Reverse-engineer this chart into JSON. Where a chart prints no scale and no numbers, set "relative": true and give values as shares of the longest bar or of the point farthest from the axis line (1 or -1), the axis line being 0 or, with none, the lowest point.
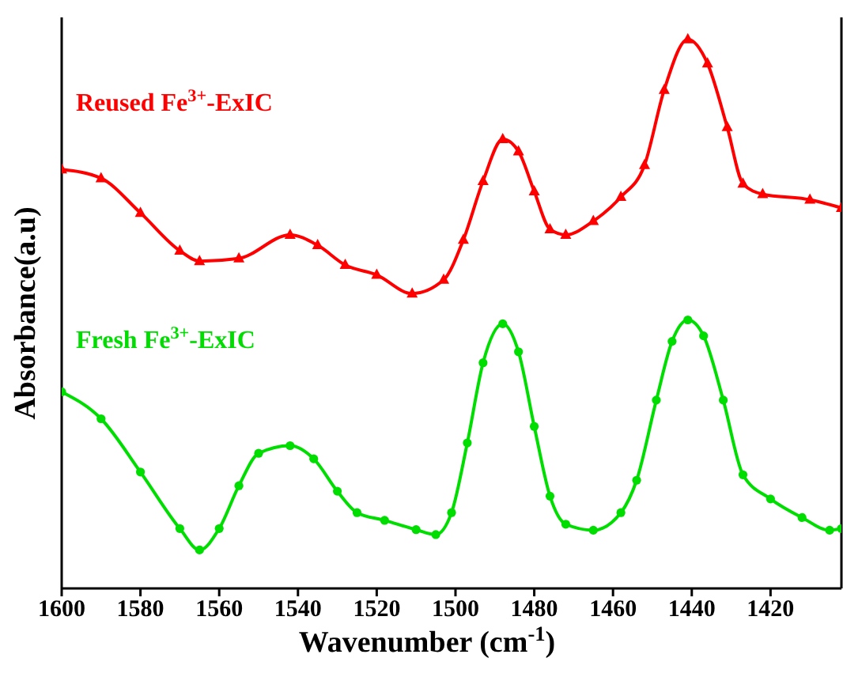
{
  "chart_data": {
    "type": "line",
    "relative": true,
    "xlabel": "Wavenumber (cm$^{-1}$)",
    "ylabel": "Absorbance(a.u)",
    "xlim": [
      1600,
      1402
    ],
    "xticks": [
      1600,
      1580,
      1560,
      1540,
      1520,
      1500,
      1480,
      1460,
      1440,
      1420
    ],
    "grid": false,
    "legend": false,
    "line_style": "solid",
    "series": [
      {
        "name": "Reused Fe$^{3+}$-ExIC",
        "color": "#ff0000",
        "marker": "triangle",
        "x": [
          1600,
          1590,
          1580,
          1570,
          1565,
          1555,
          1542,
          1535,
          1528,
          1520,
          1511,
          1503,
          1498,
          1493,
          1488,
          1484,
          1480,
          1476,
          1472,
          1465,
          1458,
          1452,
          1447,
          1441,
          1436,
          1431,
          1427,
          1422,
          1410,
          1402
        ],
        "values": [
          0.763,
          0.747,
          0.684,
          0.615,
          0.596,
          0.601,
          0.644,
          0.625,
          0.589,
          0.571,
          0.537,
          0.562,
          0.635,
          0.742,
          0.818,
          0.796,
          0.723,
          0.654,
          0.644,
          0.669,
          0.713,
          0.771,
          0.908,
          1.0,
          0.956,
          0.84,
          0.737,
          0.718,
          0.708,
          0.693
        ]
      },
      {
        "name": "Fresh Fe$^{3+}$-ExIC",
        "color": "#00dd00",
        "marker": "circle",
        "x": [
          1600,
          1590,
          1580,
          1570,
          1565,
          1560,
          1555,
          1550,
          1542,
          1536,
          1530,
          1525,
          1518,
          1510,
          1505,
          1501,
          1497,
          1493,
          1488,
          1484,
          1480,
          1476,
          1472,
          1465,
          1458,
          1454,
          1449,
          1445,
          1441,
          1437,
          1432,
          1427,
          1420,
          1412,
          1405,
          1402
        ],
        "values": [
          0.358,
          0.309,
          0.212,
          0.109,
          0.07,
          0.109,
          0.187,
          0.246,
          0.26,
          0.236,
          0.177,
          0.138,
          0.124,
          0.107,
          0.098,
          0.138,
          0.265,
          0.411,
          0.482,
          0.431,
          0.295,
          0.168,
          0.117,
          0.106,
          0.138,
          0.197,
          0.343,
          0.45,
          0.489,
          0.46,
          0.343,
          0.207,
          0.163,
          0.129,
          0.106,
          0.109
        ]
      }
    ]
  }
}
